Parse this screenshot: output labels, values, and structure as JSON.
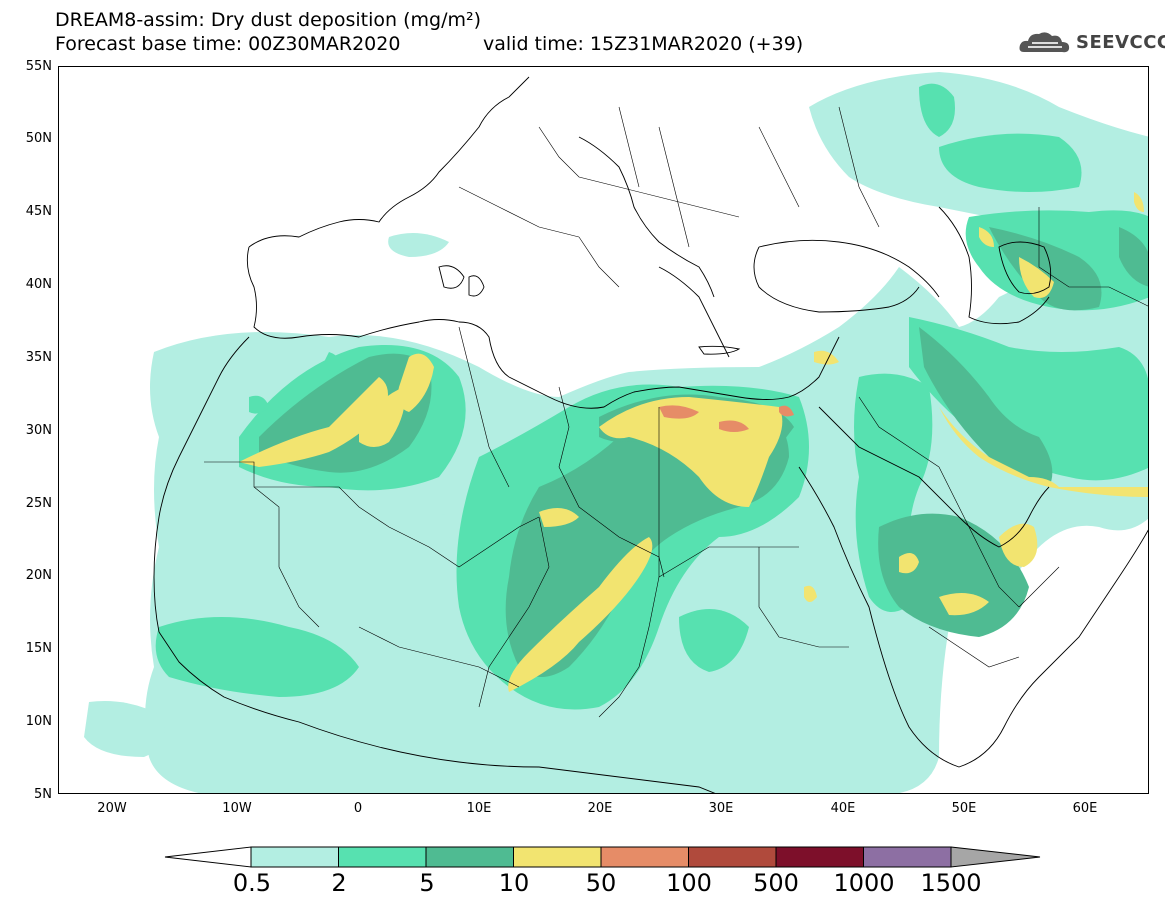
{
  "header": {
    "line1": "DREAM8-assim: Dry dust deposition (mg/m²)",
    "line2": "Forecast base time: 00Z30MAR2020",
    "valid": "valid time: 15Z31MAR2020 (+39)"
  },
  "logo": {
    "text": "SEEVCCC",
    "icon": "cloud-logo-icon"
  },
  "map": {
    "lat_labels": [
      "55N",
      "50N",
      "45N",
      "40N",
      "35N",
      "30N",
      "25N",
      "20N",
      "15N",
      "10N",
      "5N"
    ],
    "lon_labels": [
      "20W",
      "10W",
      "0",
      "10E",
      "20E",
      "30E",
      "40E",
      "50E",
      "60E"
    ],
    "extent": {
      "lon_min": -25,
      "lon_max": 65,
      "lat_min": 5,
      "lat_max": 55
    }
  },
  "legend": {
    "labels": [
      "0.5",
      "2",
      "5",
      "10",
      "50",
      "100",
      "500",
      "1000",
      "1500"
    ],
    "colors": [
      "#b3eee2",
      "#57e1b0",
      "#4fbb92",
      "#f2e470",
      "#e68c67",
      "#b04a3c",
      "#7d0f2a",
      "#8d6fa3",
      "#a6a6a6"
    ],
    "extend_left_color": "#ffffff"
  }
}
